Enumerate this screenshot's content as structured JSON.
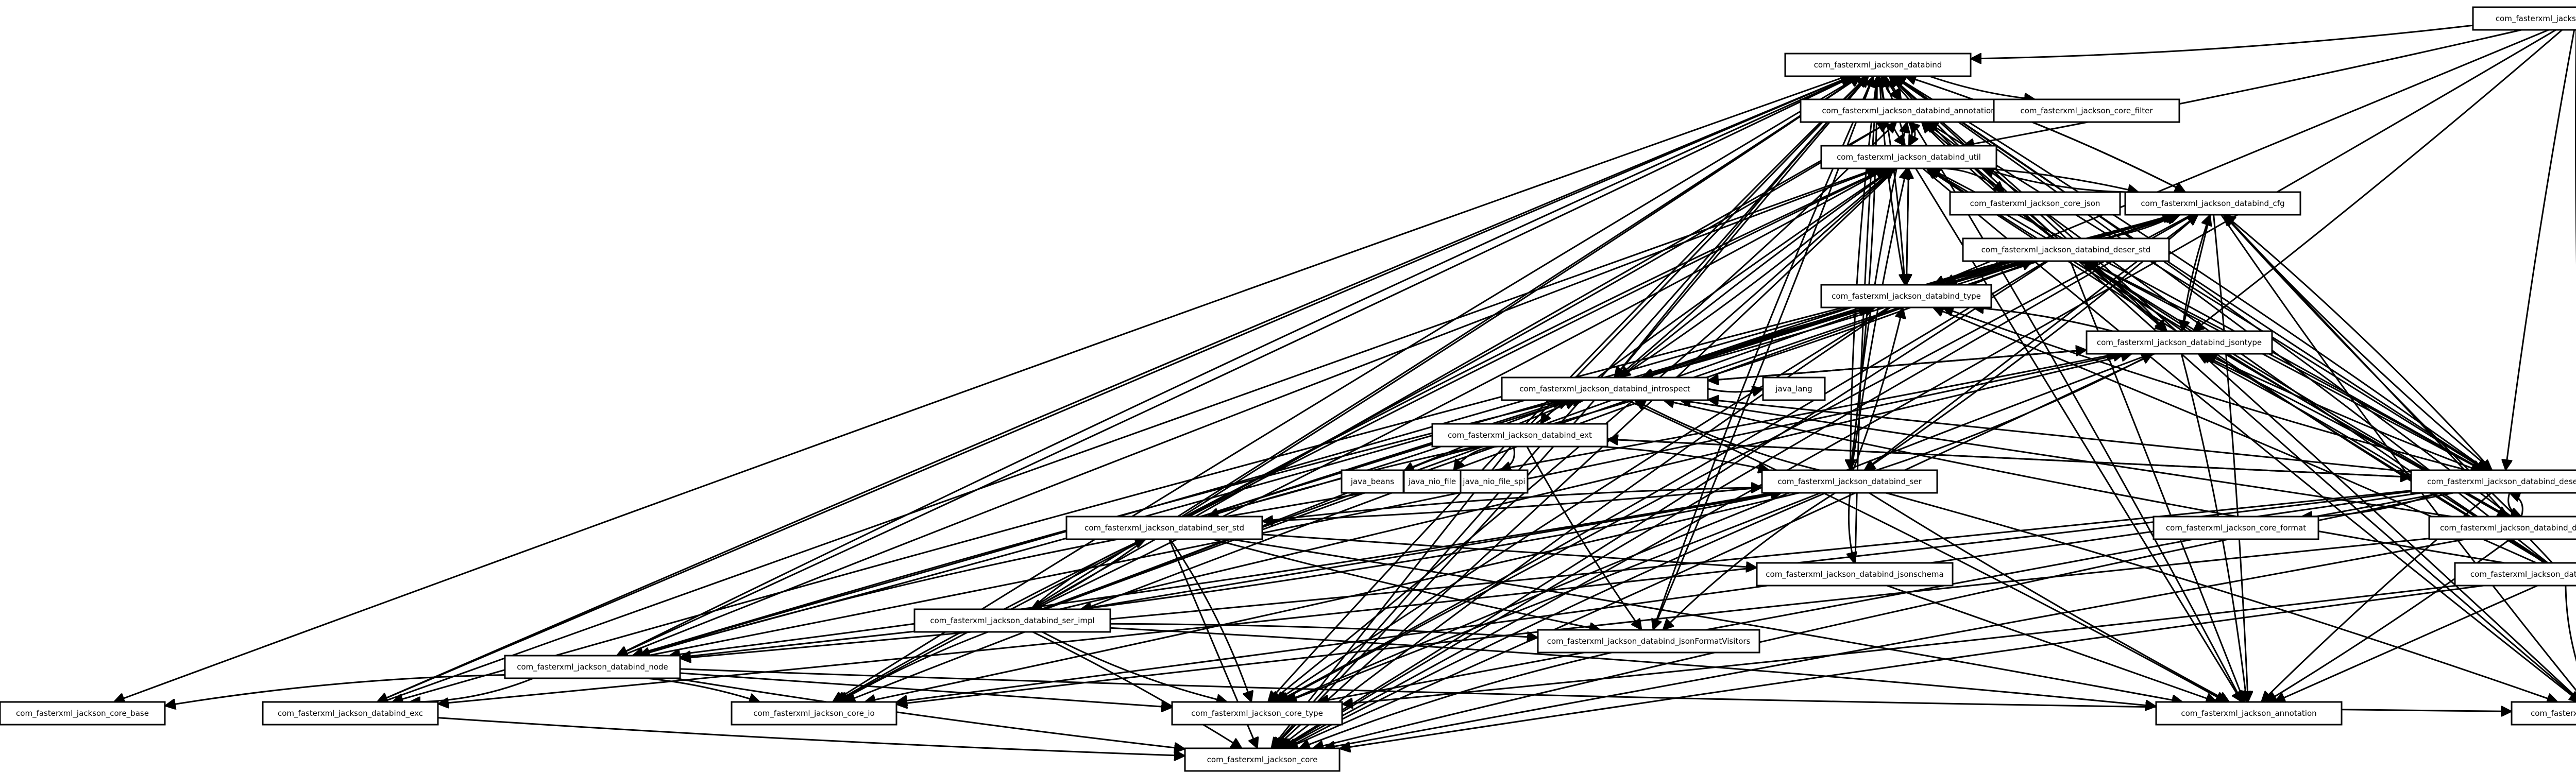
{
  "diagram": {
    "type": "dependency-graph",
    "nodes": [
      {
        "id": "module",
        "label": "com_fasterxml_jackson_databind_module"
      },
      {
        "id": "databind",
        "label": "com_fasterxml_jackson_databind"
      },
      {
        "id": "annotation",
        "label": "com_fasterxml_jackson_databind_annotation"
      },
      {
        "id": "core_filter",
        "label": "com_fasterxml_jackson_core_filter"
      },
      {
        "id": "util",
        "label": "com_fasterxml_jackson_databind_util"
      },
      {
        "id": "core_json",
        "label": "com_fasterxml_jackson_core_json"
      },
      {
        "id": "cfg",
        "label": "com_fasterxml_jackson_databind_cfg"
      },
      {
        "id": "deser_std",
        "label": "com_fasterxml_jackson_databind_deser_std"
      },
      {
        "id": "type",
        "label": "com_fasterxml_jackson_databind_type"
      },
      {
        "id": "jsontype",
        "label": "com_fasterxml_jackson_databind_jsontype"
      },
      {
        "id": "introspect",
        "label": "com_fasterxml_jackson_databind_introspect"
      },
      {
        "id": "java_lang",
        "label": "java_lang"
      },
      {
        "id": "ext",
        "label": "com_fasterxml_jackson_databind_ext"
      },
      {
        "id": "java_beans",
        "label": "java_beans"
      },
      {
        "id": "java_nio_file",
        "label": "java_nio_file"
      },
      {
        "id": "java_nio_file_spi",
        "label": "java_nio_file_spi"
      },
      {
        "id": "ser",
        "label": "com_fasterxml_jackson_databind_ser"
      },
      {
        "id": "deser",
        "label": "com_fasterxml_jackson_databind_deser"
      },
      {
        "id": "ser_std",
        "label": "com_fasterxml_jackson_databind_ser_std"
      },
      {
        "id": "deser_impl",
        "label": "com_fasterxml_jackson_databind_deser_impl"
      },
      {
        "id": "core_format",
        "label": "com_fasterxml_jackson_core_format"
      },
      {
        "id": "jsontype_impl",
        "label": "com_fasterxml_jackson_databind_jsontype_impl"
      },
      {
        "id": "jsonschema",
        "label": "com_fasterxml_jackson_databind_jsonschema"
      },
      {
        "id": "ser_impl",
        "label": "com_fasterxml_jackson_databind_ser_impl"
      },
      {
        "id": "jsonFormatVisitors",
        "label": "com_fasterxml_jackson_databind_jsonFormatVisitors"
      },
      {
        "id": "node",
        "label": "com_fasterxml_jackson_databind_node"
      },
      {
        "id": "core_base",
        "label": "com_fasterxml_jackson_core_base"
      },
      {
        "id": "databind_exc",
        "label": "com_fasterxml_jackson_databind_exc"
      },
      {
        "id": "core_io",
        "label": "com_fasterxml_jackson_core_io"
      },
      {
        "id": "core_type",
        "label": "com_fasterxml_jackson_core_type"
      },
      {
        "id": "annotations",
        "label": "com_fasterxml_jackson_annotation"
      },
      {
        "id": "core_util",
        "label": "com_fasterxml_jackson_core_util"
      },
      {
        "id": "core",
        "label": "com_fasterxml_jackson_core"
      }
    ],
    "edges": [
      [
        "module",
        "databind"
      ],
      [
        "module",
        "jsontype"
      ],
      [
        "module",
        "type"
      ],
      [
        "module",
        "deser"
      ],
      [
        "module",
        "core_util"
      ],
      [
        "module",
        "core"
      ],
      [
        "module",
        "util"
      ],
      [
        "databind",
        "annotation"
      ],
      [
        "databind",
        "core_filter"
      ],
      [
        "databind",
        "util"
      ],
      [
        "databind",
        "cfg"
      ],
      [
        "databind",
        "type"
      ],
      [
        "databind",
        "jsontype"
      ],
      [
        "databind",
        "introspect"
      ],
      [
        "databind",
        "ser"
      ],
      [
        "databind",
        "deser"
      ],
      [
        "databind",
        "node"
      ],
      [
        "databind",
        "databind_exc"
      ],
      [
        "databind",
        "core_io"
      ],
      [
        "databind",
        "core_type"
      ],
      [
        "databind",
        "annotations"
      ],
      [
        "databind",
        "core_util"
      ],
      [
        "databind",
        "core"
      ],
      [
        "databind",
        "core_base"
      ],
      [
        "databind",
        "jsonFormatVisitors"
      ],
      [
        "annotation",
        "databind"
      ],
      [
        "annotation",
        "util"
      ],
      [
        "annotation",
        "jsontype"
      ],
      [
        "util",
        "databind"
      ],
      [
        "util",
        "annotation"
      ],
      [
        "util",
        "core_json"
      ],
      [
        "util",
        "cfg"
      ],
      [
        "util",
        "type"
      ],
      [
        "util",
        "introspect"
      ],
      [
        "util",
        "core_io"
      ],
      [
        "util",
        "core_type"
      ],
      [
        "util",
        "core"
      ],
      [
        "util",
        "annotations"
      ],
      [
        "util",
        "core_util"
      ],
      [
        "cfg",
        "databind"
      ],
      [
        "cfg",
        "util"
      ],
      [
        "cfg",
        "type"
      ],
      [
        "cfg",
        "jsontype"
      ],
      [
        "cfg",
        "introspect"
      ],
      [
        "cfg",
        "deser"
      ],
      [
        "cfg",
        "ser"
      ],
      [
        "cfg",
        "annotations"
      ],
      [
        "cfg",
        "core_type"
      ],
      [
        "cfg",
        "core"
      ],
      [
        "cfg",
        "core_util"
      ],
      [
        "deser_std",
        "databind"
      ],
      [
        "deser_std",
        "annotation"
      ],
      [
        "deser_std",
        "util"
      ],
      [
        "deser_std",
        "cfg"
      ],
      [
        "deser_std",
        "type"
      ],
      [
        "deser_std",
        "jsontype"
      ],
      [
        "deser_std",
        "introspect"
      ],
      [
        "deser_std",
        "deser"
      ],
      [
        "deser_std",
        "deser_impl"
      ],
      [
        "deser_std",
        "core_io"
      ],
      [
        "deser_std",
        "core_type"
      ],
      [
        "deser_std",
        "core"
      ],
      [
        "deser_std",
        "annotations"
      ],
      [
        "deser_std",
        "core_util"
      ],
      [
        "deser_std",
        "databind_exc"
      ],
      [
        "deser_std",
        "node"
      ],
      [
        "type",
        "databind"
      ],
      [
        "type",
        "util"
      ],
      [
        "type",
        "core_type"
      ],
      [
        "type",
        "core"
      ],
      [
        "jsontype",
        "databind"
      ],
      [
        "jsontype",
        "cfg"
      ],
      [
        "jsontype",
        "introspect"
      ],
      [
        "jsontype",
        "type"
      ],
      [
        "jsontype",
        "core_type"
      ],
      [
        "jsontype",
        "annotations"
      ],
      [
        "jsontype",
        "core"
      ],
      [
        "introspect",
        "databind"
      ],
      [
        "introspect",
        "annotation"
      ],
      [
        "introspect",
        "util"
      ],
      [
        "introspect",
        "cfg"
      ],
      [
        "introspect",
        "type"
      ],
      [
        "introspect",
        "jsontype"
      ],
      [
        "introspect",
        "java_lang"
      ],
      [
        "introspect",
        "ext"
      ],
      [
        "introspect",
        "annotations"
      ],
      [
        "introspect",
        "core"
      ],
      [
        "ext",
        "databind"
      ],
      [
        "ext",
        "java_beans"
      ],
      [
        "ext",
        "java_nio_file"
      ],
      [
        "ext",
        "java_nio_file_spi"
      ],
      [
        "ext",
        "ser"
      ],
      [
        "ext",
        "deser"
      ],
      [
        "ext",
        "ser_std"
      ],
      [
        "ext",
        "deser_std"
      ],
      [
        "ext",
        "introspect"
      ],
      [
        "ext",
        "util"
      ],
      [
        "ext",
        "core"
      ],
      [
        "ext",
        "jsonFormatVisitors"
      ],
      [
        "ser",
        "databind"
      ],
      [
        "ser",
        "annotation"
      ],
      [
        "ser",
        "util"
      ],
      [
        "ser",
        "cfg"
      ],
      [
        "ser",
        "type"
      ],
      [
        "ser",
        "jsontype"
      ],
      [
        "ser",
        "introspect"
      ],
      [
        "ser",
        "ser_std"
      ],
      [
        "ser",
        "ser_impl"
      ],
      [
        "ser",
        "jsonschema"
      ],
      [
        "ser",
        "jsonFormatVisitors"
      ],
      [
        "ser",
        "node"
      ],
      [
        "ser",
        "core_io"
      ],
      [
        "ser",
        "core_type"
      ],
      [
        "ser",
        "annotations"
      ],
      [
        "ser",
        "core"
      ],
      [
        "ser",
        "core_util"
      ],
      [
        "deser",
        "databind"
      ],
      [
        "deser",
        "annotation"
      ],
      [
        "deser",
        "util"
      ],
      [
        "deser",
        "cfg"
      ],
      [
        "deser",
        "type"
      ],
      [
        "deser",
        "jsontype"
      ],
      [
        "deser",
        "introspect"
      ],
      [
        "deser",
        "deser_std"
      ],
      [
        "deser",
        "deser_impl"
      ],
      [
        "deser",
        "core_format"
      ],
      [
        "deser",
        "core_io"
      ],
      [
        "deser",
        "core_type"
      ],
      [
        "deser",
        "annotations"
      ],
      [
        "deser",
        "core"
      ],
      [
        "deser",
        "databind_exc"
      ],
      [
        "deser",
        "node"
      ],
      [
        "deser",
        "ext"
      ],
      [
        "ser_std",
        "databind"
      ],
      [
        "ser_std",
        "annotation"
      ],
      [
        "ser_std",
        "util"
      ],
      [
        "ser_std",
        "cfg"
      ],
      [
        "ser_std",
        "type"
      ],
      [
        "ser_std",
        "jsontype"
      ],
      [
        "ser_std",
        "introspect"
      ],
      [
        "ser_std",
        "ser"
      ],
      [
        "ser_std",
        "ser_impl"
      ],
      [
        "ser_std",
        "jsonschema"
      ],
      [
        "ser_std",
        "jsonFormatVisitors"
      ],
      [
        "ser_std",
        "node"
      ],
      [
        "ser_std",
        "core_type"
      ],
      [
        "ser_std",
        "annotations"
      ],
      [
        "ser_std",
        "core"
      ],
      [
        "ser_std",
        "core_io"
      ],
      [
        "deser_impl",
        "databind"
      ],
      [
        "deser_impl",
        "util"
      ],
      [
        "deser_impl",
        "cfg"
      ],
      [
        "deser_impl",
        "introspect"
      ],
      [
        "deser_impl",
        "jsontype"
      ],
      [
        "deser_impl",
        "deser"
      ],
      [
        "deser_impl",
        "deser_std"
      ],
      [
        "deser_impl",
        "annotations"
      ],
      [
        "deser_impl",
        "core"
      ],
      [
        "deser_impl",
        "core_io"
      ],
      [
        "jsontype_impl",
        "databind"
      ],
      [
        "jsontype_impl",
        "annotation"
      ],
      [
        "jsontype_impl",
        "util"
      ],
      [
        "jsontype_impl",
        "cfg"
      ],
      [
        "jsontype_impl",
        "type"
      ],
      [
        "jsontype_impl",
        "jsontype"
      ],
      [
        "jsontype_impl",
        "introspect"
      ],
      [
        "jsontype_impl",
        "core_type"
      ],
      [
        "jsontype_impl",
        "annotations"
      ],
      [
        "jsontype_impl",
        "core"
      ],
      [
        "jsontype_impl",
        "core_util"
      ],
      [
        "jsontype_impl",
        "deser_std"
      ],
      [
        "jsonschema",
        "databind"
      ],
      [
        "jsonschema",
        "annotations"
      ],
      [
        "ser_impl",
        "databind"
      ],
      [
        "ser_impl",
        "util"
      ],
      [
        "ser_impl",
        "cfg"
      ],
      [
        "ser_impl",
        "type"
      ],
      [
        "ser_impl",
        "jsontype"
      ],
      [
        "ser_impl",
        "introspect"
      ],
      [
        "ser_impl",
        "ser"
      ],
      [
        "ser_impl",
        "ser_std"
      ],
      [
        "ser_impl",
        "jsonFormatVisitors"
      ],
      [
        "ser_impl",
        "node"
      ],
      [
        "ser_impl",
        "core_io"
      ],
      [
        "ser_impl",
        "core_type"
      ],
      [
        "ser_impl",
        "annotations"
      ],
      [
        "ser_impl",
        "core"
      ],
      [
        "ser_impl",
        "annotation"
      ],
      [
        "jsonFormatVisitors",
        "databind"
      ],
      [
        "jsonFormatVisitors",
        "core"
      ],
      [
        "node",
        "databind"
      ],
      [
        "node",
        "util"
      ],
      [
        "node",
        "cfg"
      ],
      [
        "node",
        "jsontype"
      ],
      [
        "node",
        "core_base"
      ],
      [
        "node",
        "databind_exc"
      ],
      [
        "node",
        "core_io"
      ],
      [
        "node",
        "core_type"
      ],
      [
        "node",
        "core"
      ],
      [
        "node",
        "core_util"
      ],
      [
        "node",
        "introspect"
      ],
      [
        "databind_exc",
        "databind"
      ],
      [
        "databind_exc",
        "util"
      ],
      [
        "databind_exc",
        "core"
      ]
    ]
  }
}
